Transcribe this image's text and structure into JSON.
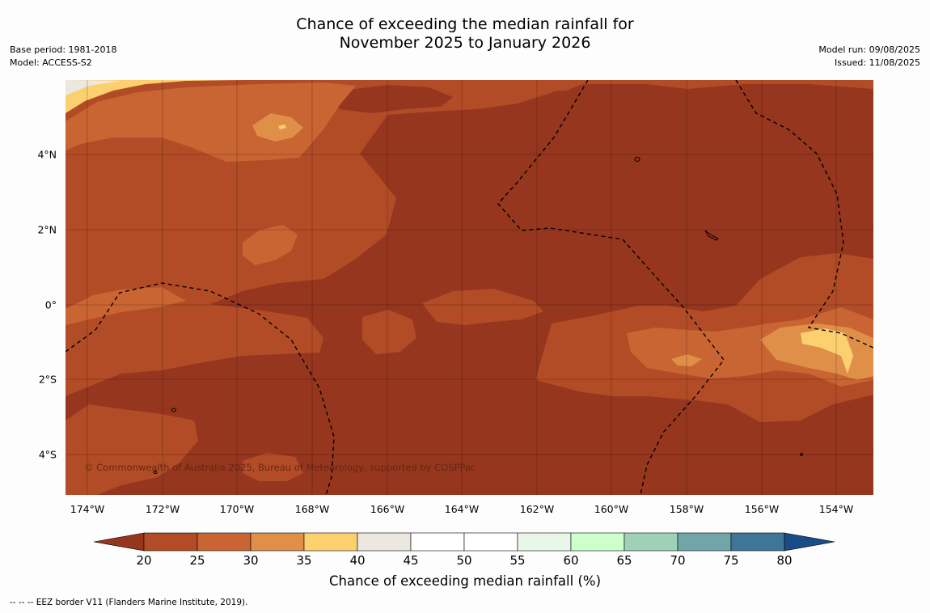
{
  "header": {
    "title_line1": "Chance of exceeding the median rainfall for",
    "title_line2": "November 2025 to January 2026",
    "base_period": "Base period: 1981-2018",
    "model": "Model: ACCESS-S2",
    "model_run": "Model run: 09/08/2025",
    "issued": "Issued: 11/08/2025"
  },
  "map": {
    "lat_labels": [
      "4°N",
      "2°N",
      "0°",
      "2°S",
      "4°S"
    ],
    "lon_labels": [
      "174°W",
      "172°W",
      "170°W",
      "168°W",
      "166°W",
      "164°W",
      "162°W",
      "160°W",
      "158°W",
      "156°W",
      "154°W"
    ],
    "copyright": "© Commonwealth of Australia 2025, Bureau of Meteorology, supported by COSPPac",
    "colors": {
      "lt20": "#96361f",
      "20_25": "#b24c27",
      "25_30": "#c96433",
      "30_35": "#df8f48",
      "35_40": "#fdd06f",
      "40_45": "#ebe8e2",
      "ocean_base": "#96361f"
    }
  },
  "colorbar": {
    "ticks": [
      "20",
      "25",
      "30",
      "35",
      "40",
      "45",
      "50",
      "55",
      "60",
      "65",
      "70",
      "75",
      "80"
    ],
    "colors": [
      "#96361f",
      "#b24c27",
      "#c96433",
      "#df8f48",
      "#fdd06f",
      "#ebe8e2",
      "#ffffff",
      "#ffffff",
      "#e9f7e9",
      "#ccffcc",
      "#9fd1b9",
      "#71a6a9",
      "#3f7599",
      "#1a4c87"
    ],
    "label": "Chance of exceeding median rainfall (%)"
  },
  "footer": {
    "eez_note": "--  --  -- EEZ border V11 (Flanders Marine Institute, 2019)."
  }
}
